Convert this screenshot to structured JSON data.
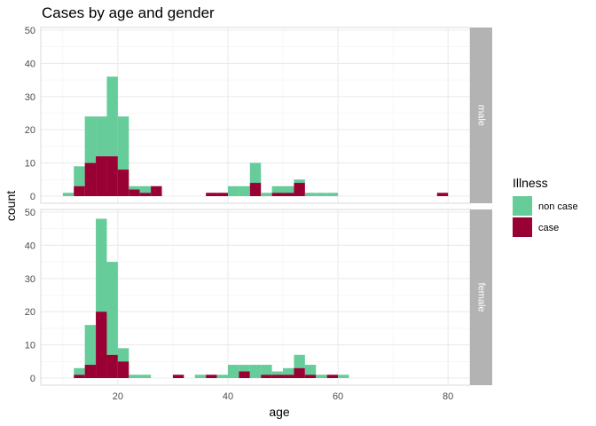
{
  "chart_data": {
    "type": "bar",
    "subtype": "stacked-histogram-faceted",
    "title": "Cases by age and gender",
    "xlabel": "age",
    "ylabel": "count",
    "xlim": [
      6,
      84
    ],
    "ylim": [
      0,
      50
    ],
    "x_ticks": [
      20,
      40,
      60,
      80
    ],
    "y_ticks": [
      0,
      10,
      20,
      30,
      40,
      50
    ],
    "bin_width": 2,
    "grid": true,
    "legend": {
      "title": "Illness",
      "position": "right",
      "entries": [
        {
          "label": "non case",
          "color": "#66CC99"
        },
        {
          "label": "case",
          "color": "#990033"
        }
      ]
    },
    "facets": [
      {
        "strip_label": "male",
        "bins": [
          {
            "x0": 10,
            "x1": 12,
            "non_case": 1,
            "case": 0
          },
          {
            "x0": 12,
            "x1": 14,
            "non_case": 6,
            "case": 3
          },
          {
            "x0": 14,
            "x1": 16,
            "non_case": 14,
            "case": 10
          },
          {
            "x0": 16,
            "x1": 18,
            "non_case": 12,
            "case": 12
          },
          {
            "x0": 18,
            "x1": 20,
            "non_case": 24,
            "case": 12
          },
          {
            "x0": 20,
            "x1": 22,
            "non_case": 16,
            "case": 8
          },
          {
            "x0": 22,
            "x1": 24,
            "non_case": 1,
            "case": 2
          },
          {
            "x0": 24,
            "x1": 26,
            "non_case": 2,
            "case": 1
          },
          {
            "x0": 26,
            "x1": 28,
            "non_case": 0,
            "case": 3
          },
          {
            "x0": 36,
            "x1": 38,
            "non_case": 0,
            "case": 1
          },
          {
            "x0": 38,
            "x1": 40,
            "non_case": 0,
            "case": 1
          },
          {
            "x0": 40,
            "x1": 42,
            "non_case": 3,
            "case": 0
          },
          {
            "x0": 42,
            "x1": 44,
            "non_case": 3,
            "case": 0
          },
          {
            "x0": 44,
            "x1": 46,
            "non_case": 6,
            "case": 4
          },
          {
            "x0": 46,
            "x1": 48,
            "non_case": 1,
            "case": 0
          },
          {
            "x0": 48,
            "x1": 50,
            "non_case": 2,
            "case": 1
          },
          {
            "x0": 50,
            "x1": 52,
            "non_case": 2,
            "case": 1
          },
          {
            "x0": 52,
            "x1": 54,
            "non_case": 1,
            "case": 4
          },
          {
            "x0": 54,
            "x1": 56,
            "non_case": 1,
            "case": 0
          },
          {
            "x0": 56,
            "x1": 58,
            "non_case": 1,
            "case": 0
          },
          {
            "x0": 58,
            "x1": 60,
            "non_case": 1,
            "case": 0
          },
          {
            "x0": 78,
            "x1": 80,
            "non_case": 0,
            "case": 1
          }
        ]
      },
      {
        "strip_label": "female",
        "bins": [
          {
            "x0": 12,
            "x1": 14,
            "non_case": 2,
            "case": 1
          },
          {
            "x0": 14,
            "x1": 16,
            "non_case": 12,
            "case": 4
          },
          {
            "x0": 16,
            "x1": 18,
            "non_case": 28,
            "case": 20
          },
          {
            "x0": 18,
            "x1": 20,
            "non_case": 28,
            "case": 7
          },
          {
            "x0": 20,
            "x1": 22,
            "non_case": 4,
            "case": 5
          },
          {
            "x0": 22,
            "x1": 24,
            "non_case": 1,
            "case": 0
          },
          {
            "x0": 24,
            "x1": 26,
            "non_case": 1,
            "case": 0
          },
          {
            "x0": 30,
            "x1": 32,
            "non_case": 0,
            "case": 1
          },
          {
            "x0": 34,
            "x1": 36,
            "non_case": 1,
            "case": 0
          },
          {
            "x0": 36,
            "x1": 38,
            "non_case": 0,
            "case": 1
          },
          {
            "x0": 38,
            "x1": 40,
            "non_case": 1,
            "case": 0
          },
          {
            "x0": 40,
            "x1": 42,
            "non_case": 4,
            "case": 0
          },
          {
            "x0": 42,
            "x1": 44,
            "non_case": 2,
            "case": 2
          },
          {
            "x0": 44,
            "x1": 46,
            "non_case": 4,
            "case": 0
          },
          {
            "x0": 46,
            "x1": 48,
            "non_case": 3,
            "case": 1
          },
          {
            "x0": 48,
            "x1": 50,
            "non_case": 1,
            "case": 1
          },
          {
            "x0": 50,
            "x1": 52,
            "non_case": 2,
            "case": 1
          },
          {
            "x0": 52,
            "x1": 54,
            "non_case": 4,
            "case": 3
          },
          {
            "x0": 54,
            "x1": 56,
            "non_case": 3,
            "case": 1
          },
          {
            "x0": 56,
            "x1": 58,
            "non_case": 1,
            "case": 0
          },
          {
            "x0": 58,
            "x1": 60,
            "non_case": 0,
            "case": 1
          },
          {
            "x0": 60,
            "x1": 62,
            "non_case": 1,
            "case": 0
          }
        ]
      }
    ]
  }
}
